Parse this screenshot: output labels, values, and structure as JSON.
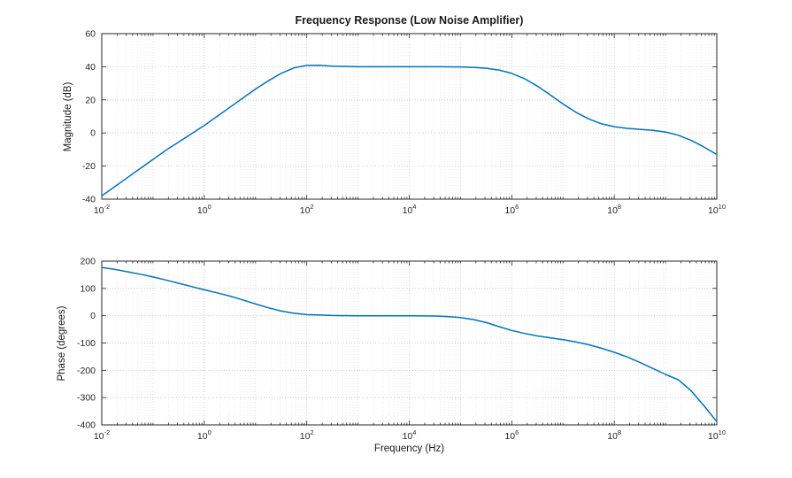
{
  "figure": {
    "title": "Frequency Response (Low Noise Amplifier)"
  },
  "style": {
    "line_color": "#0072BD",
    "axis_color": "#262626",
    "text_color": "#262626",
    "grid_major": "#c8c8c8",
    "grid_decade": "#d5d5d5",
    "grid_minor": "#e4e4e4",
    "background": "#ffffff"
  },
  "chart_data": [
    {
      "type": "line",
      "title": "Frequency Response (Low Noise Amplifier)",
      "xlabel": "",
      "ylabel": "Magnitude (dB)",
      "x_scale": "log",
      "grid": "on",
      "minor_grid": "on",
      "xlim_log10": [
        -2,
        10
      ],
      "ylim": [
        -40,
        60
      ],
      "x_ticks_log10": [
        -2,
        0,
        2,
        4,
        6,
        8,
        10
      ],
      "x_tick_labels": [
        "10^-2",
        "10^0",
        "10^2",
        "10^4",
        "10^6",
        "10^8",
        "10^10"
      ],
      "y_ticks": [
        -40,
        -20,
        0,
        20,
        40,
        60
      ],
      "series": [
        {
          "name": "magnitude",
          "color": "#0072BD",
          "x_log10": [
            -2,
            -1.75,
            -1.5,
            -1.25,
            -1,
            -0.75,
            -0.5,
            -0.25,
            0,
            0.25,
            0.5,
            0.75,
            1,
            1.25,
            1.5,
            1.75,
            2,
            2.25,
            2.5,
            3,
            3.5,
            4,
            4.5,
            5,
            5.25,
            5.5,
            5.75,
            6,
            6.25,
            6.5,
            6.75,
            7,
            7.25,
            7.5,
            7.75,
            8,
            8.25,
            8.5,
            8.75,
            9,
            9.25,
            9.5,
            9.75,
            10
          ],
          "y": [
            -38,
            -32.5,
            -27,
            -21.5,
            -16,
            -10.5,
            -5.5,
            -0.5,
            4.5,
            10,
            15.5,
            21,
            26.5,
            31.5,
            36,
            39.3,
            40.8,
            40.9,
            40.4,
            40,
            40,
            40,
            40,
            39.9,
            39.6,
            39.1,
            38,
            36,
            32.8,
            28.3,
            23,
            17.5,
            12.5,
            8.5,
            5.5,
            3.8,
            2.8,
            2.2,
            1.6,
            0.6,
            -1.4,
            -4.5,
            -8.5,
            -13
          ]
        }
      ]
    },
    {
      "type": "line",
      "title": "",
      "xlabel": "Frequency (Hz)",
      "ylabel": "Phase (degrees)",
      "x_scale": "log",
      "grid": "on",
      "minor_grid": "on",
      "xlim_log10": [
        -2,
        10
      ],
      "ylim": [
        -400,
        200
      ],
      "x_ticks_log10": [
        -2,
        0,
        2,
        4,
        6,
        8,
        10
      ],
      "x_tick_labels": [
        "10^-2",
        "10^0",
        "10^2",
        "10^4",
        "10^6",
        "10^8",
        "10^10"
      ],
      "y_ticks": [
        -400,
        -300,
        -200,
        -100,
        0,
        100,
        200
      ],
      "series": [
        {
          "name": "phase",
          "color": "#0072BD",
          "x_log10": [
            -2,
            -1.75,
            -1.5,
            -1.25,
            -1,
            -0.75,
            -0.5,
            -0.25,
            0,
            0.25,
            0.5,
            0.75,
            1,
            1.25,
            1.5,
            1.75,
            2,
            2.5,
            3,
            3.5,
            4,
            4.5,
            4.75,
            5,
            5.25,
            5.5,
            5.75,
            6,
            6.25,
            6.5,
            6.75,
            7,
            7.25,
            7.5,
            7.75,
            8,
            8.25,
            8.5,
            8.75,
            9,
            9.25,
            9.5,
            9.75,
            10
          ],
          "y": [
            177,
            170,
            161,
            152,
            142,
            131,
            119,
            107,
            95,
            84,
            72,
            58,
            43,
            29,
            17,
            9,
            4,
            1,
            0,
            0,
            0,
            -1,
            -3,
            -7,
            -14,
            -25,
            -40,
            -54,
            -65,
            -74,
            -81,
            -88,
            -96,
            -106,
            -119,
            -134,
            -151,
            -171,
            -193,
            -215,
            -235,
            -275,
            -330,
            -388
          ]
        }
      ]
    }
  ]
}
